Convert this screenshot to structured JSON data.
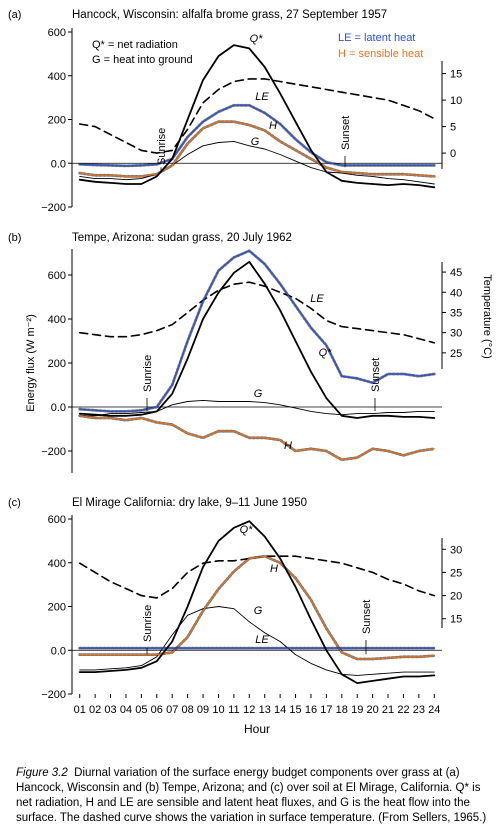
{
  "colors": {
    "ink": "#000000",
    "blue": "#2a52d8",
    "orange": "#e8731e"
  },
  "chart_data": [
    {
      "type": "line",
      "panel": "(a)",
      "title": "Hancock, Wisconsin: alfalfa brome grass, 27 September 1957",
      "legend": {
        "left": [
          "Q* = net radiation",
          "G = heat into ground"
        ],
        "right": [
          "LE = latent heat",
          "H = sensible heat"
        ],
        "placement": "top"
      },
      "ylim": [
        -200,
        600
      ],
      "yticks": [
        "600",
        "400",
        "200",
        "0.0",
        "−200"
      ],
      "y2lim": [
        -3,
        17
      ],
      "y2ticks": [
        "15",
        "10",
        "5",
        "0"
      ],
      "annotations": [
        "Sunrise",
        "Sunset",
        "Q*",
        "LE",
        "H",
        "G"
      ],
      "x": [
        1,
        2,
        3,
        4,
        5,
        6,
        7,
        8,
        9,
        10,
        11,
        12,
        13,
        14,
        15,
        16,
        17,
        18,
        19,
        20,
        21,
        22,
        23,
        24
      ],
      "series": [
        {
          "name": "Q*",
          "values": [
            -75,
            -85,
            -90,
            -95,
            -95,
            -60,
            20,
            200,
            380,
            490,
            540,
            525,
            440,
            320,
            190,
            60,
            -40,
            -80,
            -90,
            -95,
            -100,
            -95,
            -100,
            -110
          ]
        },
        {
          "name": "LE",
          "values": [
            -5,
            -8,
            -10,
            -12,
            -10,
            -5,
            20,
            120,
            190,
            235,
            265,
            265,
            230,
            180,
            110,
            50,
            5,
            -10,
            -10,
            -10,
            -10,
            -10,
            -10,
            -10
          ]
        },
        {
          "name": "H",
          "values": [
            -45,
            -55,
            -55,
            -60,
            -60,
            -50,
            -10,
            90,
            160,
            190,
            190,
            175,
            150,
            100,
            60,
            20,
            -20,
            -40,
            -45,
            -50,
            -50,
            -50,
            -55,
            -60
          ]
        },
        {
          "name": "G",
          "values": [
            -60,
            -70,
            -70,
            -75,
            -70,
            -50,
            -10,
            40,
            80,
            95,
            100,
            80,
            65,
            40,
            10,
            -20,
            -40,
            -45,
            -55,
            -60,
            -70,
            -75,
            -85,
            -95
          ]
        },
        {
          "name": "Temperature",
          "values": [
            5.5,
            5,
            3.5,
            2,
            0.5,
            0,
            0.5,
            4.5,
            9.5,
            12,
            13.5,
            14,
            14,
            13.5,
            13,
            12.5,
            12,
            11.5,
            11,
            10.5,
            10,
            9,
            8,
            6.5
          ]
        }
      ]
    },
    {
      "type": "line",
      "panel": "(b)",
      "title": "Tempe, Arizona: sudan grass, 20 July 1962",
      "ylim": [
        -300,
        700
      ],
      "yticks": [
        "600",
        "400",
        "200",
        "0.0",
        "−200"
      ],
      "y2lim": [
        21,
        47
      ],
      "y2ticks": [
        "45",
        "40",
        "35",
        "30",
        "25"
      ],
      "ylabel": "Energy flux (W m⁻²)",
      "y2label": "Temperature (°C)",
      "annotations": [
        "Sunrise",
        "Sunset",
        "LE",
        "Q*",
        "G",
        "H"
      ],
      "x": [
        1,
        2,
        3,
        4,
        5,
        6,
        7,
        8,
        9,
        10,
        11,
        12,
        13,
        14,
        15,
        16,
        17,
        18,
        19,
        20,
        21,
        22,
        23,
        24
      ],
      "series": [
        {
          "name": "Q*",
          "values": [
            -30,
            -35,
            -40,
            -40,
            -35,
            -20,
            60,
            220,
            400,
            520,
            610,
            660,
            560,
            440,
            300,
            160,
            40,
            -40,
            -50,
            -40,
            -40,
            -45,
            -45,
            -50
          ]
        },
        {
          "name": "LE",
          "values": [
            -10,
            -15,
            -20,
            -20,
            -15,
            0,
            100,
            300,
            480,
            620,
            680,
            710,
            650,
            560,
            460,
            360,
            280,
            140,
            130,
            110,
            150,
            150,
            140,
            150
          ]
        },
        {
          "name": "H",
          "values": [
            -40,
            -50,
            -50,
            -60,
            -50,
            -70,
            -80,
            -120,
            -140,
            -110,
            -110,
            -140,
            -140,
            -150,
            -200,
            -190,
            -200,
            -240,
            -230,
            -190,
            -200,
            -220,
            -200,
            -190
          ]
        },
        {
          "name": "G",
          "values": [
            -40,
            -40,
            -30,
            -30,
            -25,
            -20,
            10,
            25,
            30,
            25,
            25,
            25,
            20,
            10,
            -5,
            -20,
            -30,
            -35,
            -30,
            -30,
            -25,
            -25,
            -20,
            -20
          ]
        },
        {
          "name": "Temperature",
          "values": [
            30,
            29.5,
            29,
            29,
            29.5,
            30.5,
            32,
            35,
            38,
            40.5,
            42,
            42.5,
            41.5,
            40,
            38.5,
            36,
            33,
            31.5,
            31,
            30.5,
            30,
            29.5,
            28.5,
            27.5
          ]
        }
      ]
    },
    {
      "type": "line",
      "panel": "(c)",
      "title": "El Mirage California: dry lake, 9–11 June 1950",
      "ylim": [
        -200,
        600
      ],
      "yticks": [
        "600",
        "400",
        "200",
        "0.0",
        "−200"
      ],
      "y2lim": [
        13,
        32
      ],
      "y2ticks": [
        "30",
        "25",
        "20",
        "15"
      ],
      "xlabel": "Hour",
      "xticks": [
        "01",
        "02",
        "03",
        "04",
        "05",
        "06",
        "07",
        "08",
        "09",
        "10",
        "11",
        "12",
        "13",
        "14",
        "15",
        "16",
        "17",
        "18",
        "19",
        "20",
        "21",
        "22",
        "23",
        "24"
      ],
      "annotations": [
        "Sunrise",
        "Sunset",
        "Q*",
        "H",
        "G",
        "LE"
      ],
      "x": [
        1,
        2,
        3,
        4,
        5,
        6,
        7,
        8,
        9,
        10,
        11,
        12,
        13,
        14,
        15,
        16,
        17,
        18,
        19,
        20,
        21,
        22,
        23,
        24
      ],
      "series": [
        {
          "name": "Q*",
          "values": [
            -100,
            -100,
            -95,
            -90,
            -80,
            -50,
            40,
            200,
            380,
            500,
            560,
            590,
            520,
            420,
            290,
            140,
            0,
            -110,
            -150,
            -140,
            -130,
            -120,
            -120,
            -115
          ]
        },
        {
          "name": "LE",
          "values": [
            10,
            10,
            10,
            10,
            10,
            10,
            10,
            10,
            10,
            10,
            10,
            10,
            10,
            10,
            10,
            10,
            10,
            10,
            10,
            10,
            10,
            10,
            10,
            10
          ]
        },
        {
          "name": "H",
          "values": [
            -20,
            -20,
            -20,
            -20,
            -20,
            -20,
            -10,
            60,
            180,
            280,
            360,
            420,
            430,
            400,
            330,
            230,
            100,
            -10,
            -40,
            -40,
            -35,
            -30,
            -30,
            -25
          ]
        },
        {
          "name": "G",
          "values": [
            -90,
            -90,
            -85,
            -80,
            -70,
            -30,
            70,
            160,
            190,
            200,
            190,
            130,
            80,
            40,
            -20,
            -60,
            -90,
            -110,
            -115,
            -110,
            -105,
            -100,
            -100,
            -100
          ]
        },
        {
          "name": "Temperature",
          "values": [
            27,
            25,
            23,
            21.5,
            20,
            19.5,
            21.5,
            25,
            27,
            27.5,
            27.5,
            28,
            28.5,
            28.5,
            28.5,
            28,
            27.5,
            27,
            26,
            25,
            23.5,
            22.5,
            21,
            20
          ]
        }
      ]
    }
  ],
  "caption": {
    "label": "Figure 3.2",
    "text": "Diurnal variation of the surface energy budget components over grass at (a) Hancock, Wisconsin and (b) Tempe, Arizona; and (c) over soil at El Mirage, California. Q* is net radiation, H and LE are sensible and latent heat fluxes, and G is the heat flow into the surface. The dashed curve shows the variation in surface temperature. (From Sellers, 1965.)"
  }
}
